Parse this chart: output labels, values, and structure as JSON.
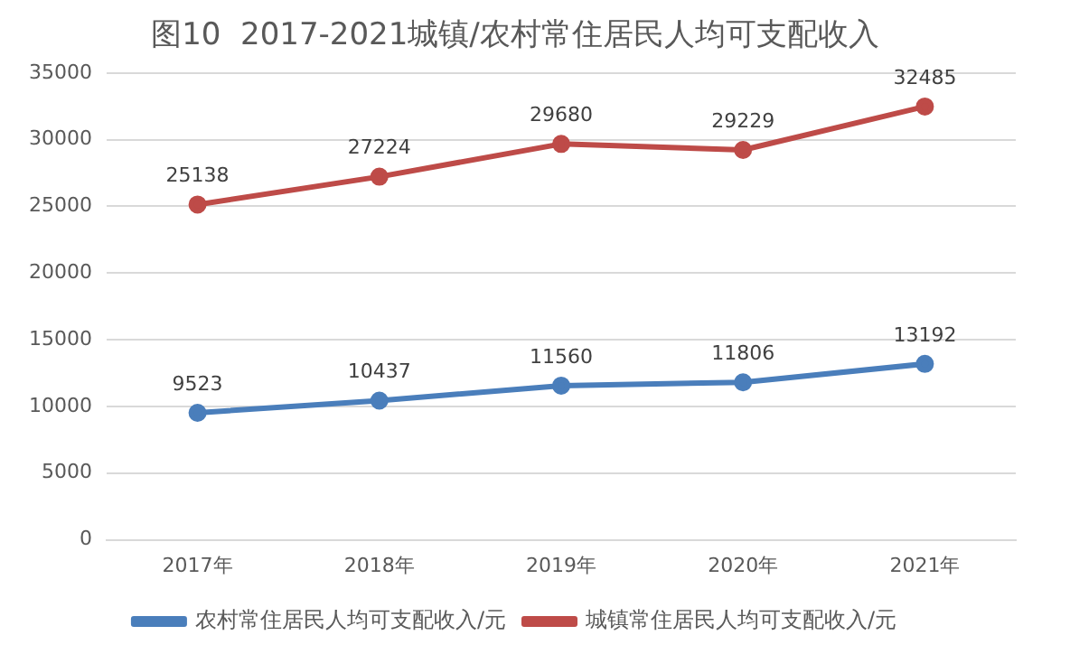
{
  "chart_data": {
    "type": "line",
    "title": "图10  2017-2021城镇/农村常住居民人均可支配收入",
    "categories": [
      "2017年",
      "2018年",
      "2019年",
      "2020年",
      "2021年"
    ],
    "series": [
      {
        "name": "农村常住居民人均可支配收入/元",
        "color": "#4a7ebb",
        "values": [
          9523,
          10437,
          11560,
          11806,
          13192
        ]
      },
      {
        "name": "城镇常住居民人均可支配收入/元",
        "color": "#be4b48",
        "values": [
          25138,
          27224,
          29680,
          29229,
          32485
        ]
      }
    ],
    "ylim": [
      0,
      35000
    ],
    "yticks": [
      0,
      5000,
      10000,
      15000,
      20000,
      25000,
      30000,
      35000
    ],
    "grid": "y",
    "legend": "bottom",
    "marker": "circle",
    "line_style": "solid",
    "data_labels": true
  }
}
